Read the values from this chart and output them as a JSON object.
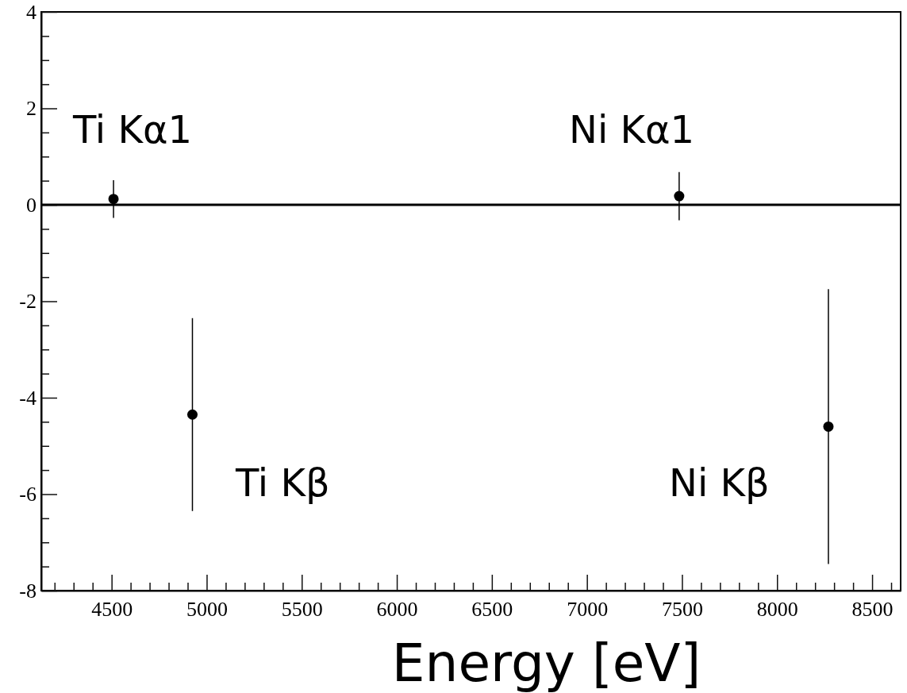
{
  "chart_data": {
    "type": "scatter",
    "xlabel": "Energy [eV]",
    "x": [
      4510,
      4925,
      7485,
      8270
    ],
    "values": [
      0.12,
      -4.35,
      0.18,
      -4.6
    ],
    "errors": [
      0.39,
      2.0,
      0.5,
      2.85
    ],
    "color": "#000000",
    "marker": "circle",
    "xlim": [
      4130,
      8650
    ],
    "xticks": [
      {
        "value": 4200,
        "label": null
      },
      {
        "value": 4300,
        "label": null
      },
      {
        "value": 4400,
        "label": null
      },
      4500,
      {
        "value": 4600,
        "label": null
      },
      {
        "value": 4700,
        "label": null
      },
      {
        "value": 4800,
        "label": null
      },
      {
        "value": 4900,
        "label": null
      },
      5000,
      {
        "value": 5100,
        "label": null
      },
      {
        "value": 5200,
        "label": null
      },
      {
        "value": 5300,
        "label": null
      },
      {
        "value": 5400,
        "label": null
      },
      5500,
      {
        "value": 5600,
        "label": null
      },
      {
        "value": 5700,
        "label": null
      },
      {
        "value": 5800,
        "label": null
      },
      {
        "value": 5900,
        "label": null
      },
      6000,
      {
        "value": 6100,
        "label": null
      },
      {
        "value": 6200,
        "label": null
      },
      {
        "value": 6300,
        "label": null
      },
      {
        "value": 6400,
        "label": null
      },
      6500,
      {
        "value": 6600,
        "label": null
      },
      {
        "value": 6700,
        "label": null
      },
      {
        "value": 6800,
        "label": null
      },
      {
        "value": 6900,
        "label": null
      },
      7000,
      {
        "value": 7100,
        "label": null
      },
      {
        "value": 7200,
        "label": null
      },
      {
        "value": 7300,
        "label": null
      },
      {
        "value": 7400,
        "label": null
      },
      7500,
      {
        "value": 7600,
        "label": null
      },
      {
        "value": 7700,
        "label": null
      },
      {
        "value": 7800,
        "label": null
      },
      {
        "value": 7900,
        "label": null
      },
      8000,
      {
        "value": 8100,
        "label": null
      },
      {
        "value": 8200,
        "label": null
      },
      {
        "value": 8300,
        "label": null
      },
      {
        "value": 8400,
        "label": null
      },
      8500,
      {
        "value": 8600,
        "label": null
      }
    ],
    "ylim": [
      -8,
      4
    ],
    "yticks": [
      -8,
      {
        "value": -7.5,
        "label": null
      },
      {
        "value": -7,
        "label": null
      },
      {
        "value": -6.5,
        "label": null
      },
      -6,
      {
        "value": -5.5,
        "label": null
      },
      {
        "value": -5,
        "label": null
      },
      {
        "value": -4.5,
        "label": null
      },
      -4,
      {
        "value": -3.5,
        "label": null
      },
      {
        "value": -3,
        "label": null
      },
      {
        "value": -2.5,
        "label": null
      },
      -2,
      {
        "value": -1.5,
        "label": null
      },
      {
        "value": -1,
        "label": null
      },
      {
        "value": -0.5,
        "label": null
      },
      0,
      {
        "value": 0.5,
        "label": null
      },
      {
        "value": 1,
        "label": null
      },
      {
        "value": 1.5,
        "label": null
      },
      2,
      {
        "value": 2.5,
        "label": null
      },
      {
        "value": 3,
        "label": null
      },
      {
        "value": 3.5,
        "label": null
      },
      4
    ],
    "ref_lines": [
      {
        "axis": "y",
        "value": 0,
        "color": "#000000"
      }
    ],
    "annotations": [
      "Ti Kα1",
      "Ni Kα1",
      "Ti Kβ",
      "Ni Kβ"
    ],
    "grid": false
  }
}
